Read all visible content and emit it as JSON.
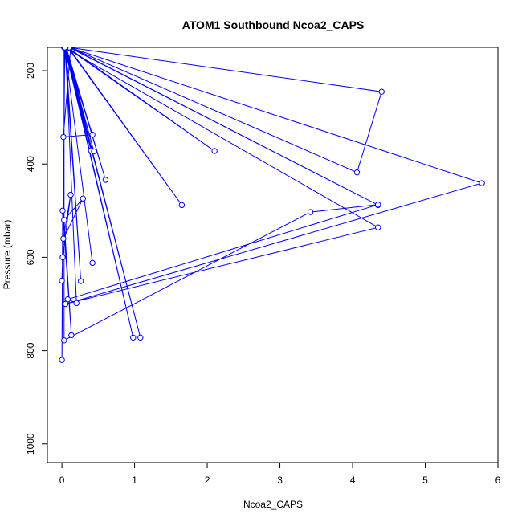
{
  "chart_data": {
    "type": "line",
    "title": "ATOM1 Southbound Ncoa2_CAPS",
    "xlabel": "Ncoa2_CAPS",
    "ylabel": "Pressure (mbar)",
    "xlim": [
      -0.2,
      6.0
    ],
    "ylim": [
      1040,
      150
    ],
    "y_reversed": true,
    "x_ticks": [
      0,
      1,
      2,
      3,
      4,
      5,
      6
    ],
    "y_ticks": [
      200,
      400,
      600,
      800,
      1000
    ],
    "grid": false,
    "line_color": "#0000ff",
    "marker": "open-circle",
    "series": [
      {
        "x": [
          0.12,
          0.02,
          0.42,
          0.03,
          0.4,
          0.04,
          0.44,
          0.05,
          0.6,
          0.06,
          2.1,
          0.08,
          1.65,
          0.09,
          4.4,
          4.06,
          0.11,
          4.35,
          0.1,
          5.78,
          0.05,
          4.35,
          0.03,
          0.03,
          3.42,
          4.35,
          0.08,
          0.2,
          0.05,
          0.26,
          0.04,
          0.42,
          0.04,
          0.98,
          0.05,
          1.08,
          0.04,
          0.0,
          0.01,
          0.13,
          0.03,
          0.29,
          0.02,
          0.12,
          0.01,
          0.0
        ],
        "y": [
          150,
          342,
          337,
          150,
          371,
          150,
          373,
          150,
          434,
          150,
          372,
          150,
          488,
          150,
          245,
          418,
          150,
          488,
          150,
          441,
          700,
          536,
          150,
          778,
          503,
          487,
          690,
          698,
          150,
          651,
          150,
          612,
          150,
          772,
          150,
          772,
          150,
          820,
          500,
          767,
          520,
          474,
          560,
          466,
          600,
          650
        ]
      }
    ]
  }
}
